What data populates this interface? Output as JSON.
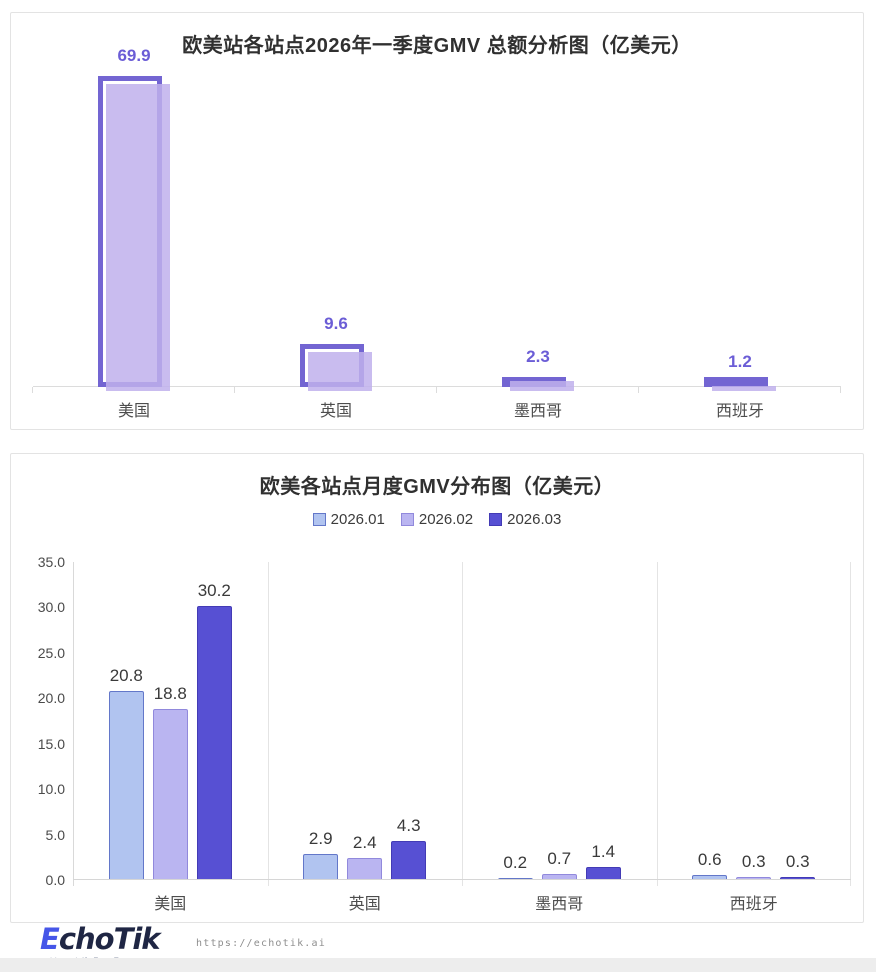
{
  "brand": {
    "name_mark": "E",
    "name_rest": "choTik",
    "tagline": "TikTok选品工具",
    "url": "https://echotik.ai"
  },
  "colors": {
    "card_border": "#e3e3e3",
    "title_text": "#303030",
    "axis_line": "#dcdcdc",
    "chart1_frame": "#7365d2",
    "chart1_fill": "#c6baf0",
    "chart1_value_label": "#6b5dd6",
    "chart2_value_label": "#3a3a3a",
    "brand_blue": "#4656e8",
    "brand_navy": "#1f2644"
  },
  "chart_data": [
    {
      "type": "bar",
      "title": "欧美站各站点2026年一季度GMV 总额分析图（亿美元）",
      "categories": [
        "美国",
        "英国",
        "墨西哥",
        "西班牙"
      ],
      "values": [
        69.9,
        9.6,
        2.3,
        1.2
      ],
      "value_labels": [
        "69.9",
        "9.6",
        "2.3",
        "1.2"
      ],
      "ylabel": "",
      "xlabel": "",
      "ylim": [
        0,
        70
      ],
      "grid": "none",
      "legend_position": "none",
      "bar_style": {
        "frame": "#7365d2",
        "fill": "#c6baf0",
        "label_color": "#6b5dd6"
      }
    },
    {
      "type": "bar",
      "title": "欧美各站点月度GMV分布图（亿美元）",
      "categories": [
        "美国",
        "英国",
        "墨西哥",
        "西班牙"
      ],
      "series": [
        {
          "name": "2026.01",
          "values": [
            20.8,
            2.9,
            0.2,
            0.6
          ],
          "fill": "#b1c4f0",
          "border": "#6377c9"
        },
        {
          "name": "2026.02",
          "values": [
            18.8,
            2.4,
            0.7,
            0.3
          ],
          "fill": "#bab5f1",
          "border": "#9189dc"
        },
        {
          "name": "2026.03",
          "values": [
            30.2,
            4.3,
            1.4,
            0.3
          ],
          "fill": "#5750d3",
          "border": "#433bb5"
        }
      ],
      "ylabel": "",
      "xlabel": "",
      "ylim": [
        0,
        35
      ],
      "ytick_labels": [
        "35.0",
        "30.0",
        "25.0",
        "20.0",
        "15.0",
        "10.0",
        "5.0",
        "0.0"
      ],
      "grid": "vertical-category-separators",
      "legend_position": "top"
    }
  ]
}
